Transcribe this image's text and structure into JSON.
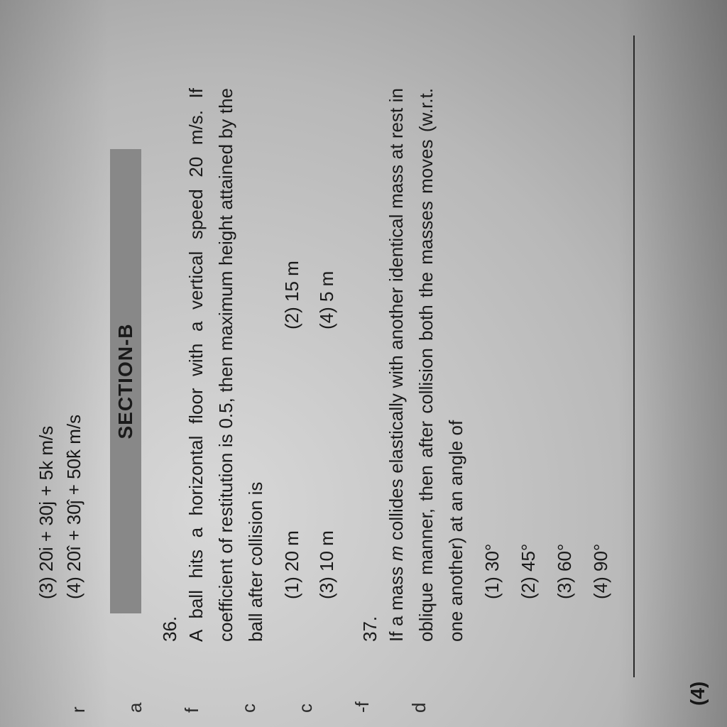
{
  "top_fragment": "(3) 20i + 30j + 5k m/s",
  "option4_top": "(4) 20î + 30ĵ + 50k̂ m/s",
  "section_label": "SECTION-B",
  "left_margin": [
    "r",
    "a",
    "f",
    "c",
    "c",
    "-f",
    "d"
  ],
  "q36": {
    "number": "36.",
    "text": "A ball hits a horizontal floor with a vertical speed 20 m/s. If coefficient of restitution is 0.5, then maximum height attained by the ball after collision is",
    "options": [
      {
        "label": "(1) 20 m"
      },
      {
        "label": "(2) 15 m"
      },
      {
        "label": "(3) 10 m"
      },
      {
        "label": "(4) 5 m"
      }
    ]
  },
  "q37": {
    "number": "37.",
    "text_pre": "If a mass ",
    "var": "m",
    "text_post": " collides elastically with another identical mass at rest in oblique manner, then after collision both the masses moves (w.r.t. one another) at an angle of",
    "options": [
      {
        "label": "(1) 30°"
      },
      {
        "label": "(2) 45°"
      },
      {
        "label": "(3) 60°"
      },
      {
        "label": "(4) 90°"
      }
    ]
  },
  "bottom_marker": "(4)"
}
